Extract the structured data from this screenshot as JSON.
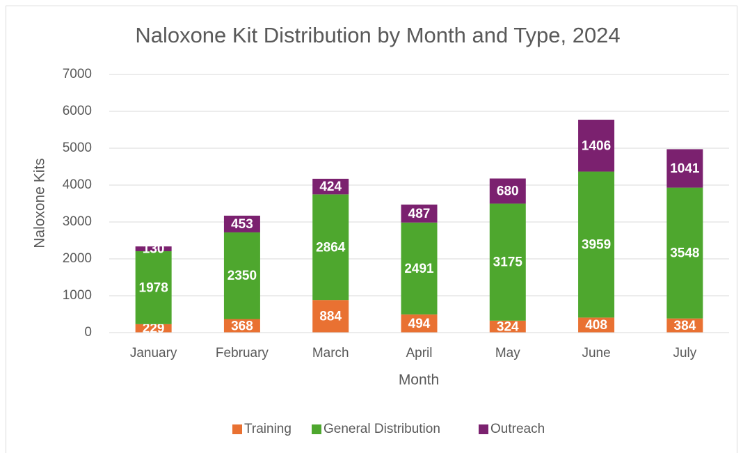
{
  "chart_data": {
    "type": "bar",
    "stacked": true,
    "title": "Naloxone Kit Distribution by Month and Type, 2024",
    "x_label": "Month",
    "y_label": "Naloxone Kits",
    "categories": [
      "January",
      "February",
      "March",
      "April",
      "May",
      "June",
      "July"
    ],
    "series": [
      {
        "name": "Training",
        "color": "#e97132",
        "values": [
          229,
          368,
          884,
          494,
          324,
          408,
          384
        ]
      },
      {
        "name": "General Distribution",
        "color": "#4ea72e",
        "values": [
          1978,
          2350,
          2864,
          2491,
          3175,
          3959,
          3548
        ]
      },
      {
        "name": "Outreach",
        "color": "#7b216f",
        "values": [
          130,
          453,
          424,
          487,
          680,
          1406,
          1041
        ]
      }
    ],
    "ylim": [
      0,
      7000
    ],
    "yticks": [
      0,
      1000,
      2000,
      3000,
      4000,
      5000,
      6000,
      7000
    ],
    "grid": true,
    "legend": "bottom"
  }
}
